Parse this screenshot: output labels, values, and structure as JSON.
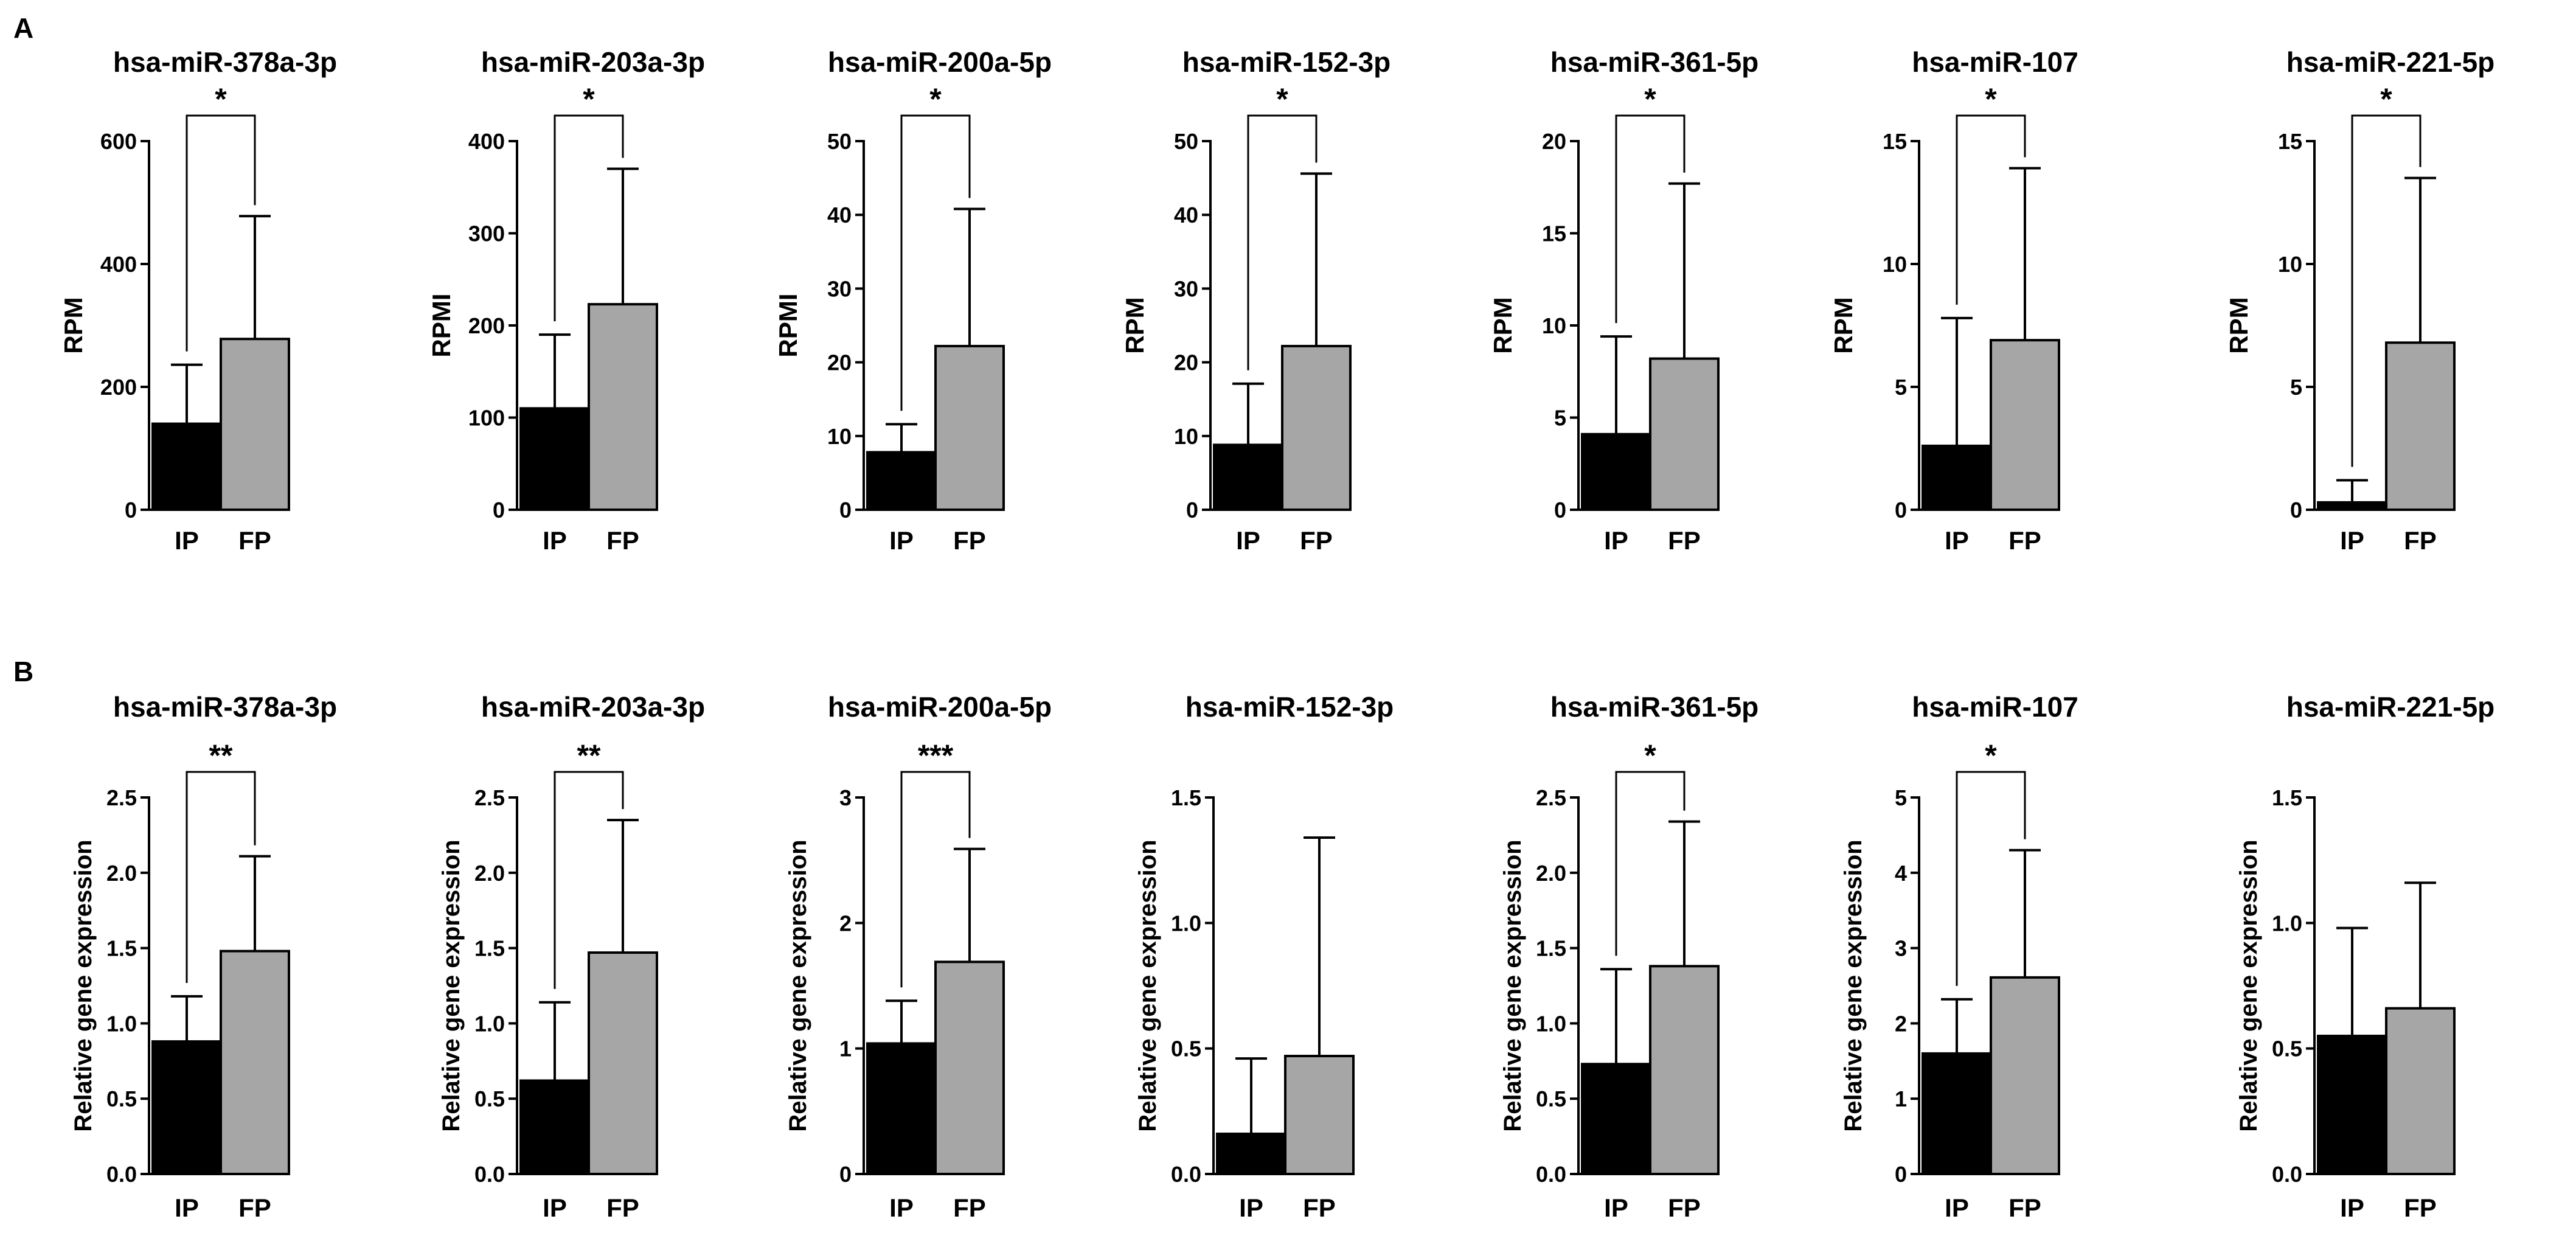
{
  "panels": {
    "A": {
      "label": "A"
    },
    "B": {
      "label": "B"
    }
  },
  "colors": {
    "IP": "#000000",
    "FP": "#a6a6a6",
    "axis": "#000000"
  },
  "chart_data": [
    {
      "panel": "A",
      "type": "bar",
      "title": "hsa-miR-378a-3p",
      "ylabel": "RPM",
      "categories": [
        "IP",
        "FP"
      ],
      "values": [
        140,
        278
      ],
      "errors": [
        236,
        478
      ],
      "ylim": [
        0,
        600
      ],
      "yticks": [
        0,
        200,
        400,
        600
      ],
      "sig": "*"
    },
    {
      "panel": "A",
      "type": "bar",
      "title": "hsa-miR-203a-3p",
      "ylabel": "RPMI",
      "categories": [
        "IP",
        "FP"
      ],
      "values": [
        110,
        223
      ],
      "errors": [
        190,
        370
      ],
      "ylim": [
        0,
        400
      ],
      "yticks": [
        0,
        100,
        200,
        300,
        400
      ],
      "sig": "*"
    },
    {
      "panel": "A",
      "type": "bar",
      "title": "hsa-miR-200a-5p",
      "ylabel": "RPMI",
      "categories": [
        "IP",
        "FP"
      ],
      "values": [
        7.8,
        22.2
      ],
      "errors": [
        11.6,
        40.8
      ],
      "ylim": [
        0,
        50
      ],
      "yticks": [
        0,
        10,
        20,
        30,
        40,
        50
      ],
      "sig": "*"
    },
    {
      "panel": "A",
      "type": "bar",
      "title": "hsa-miR-152-3p",
      "ylabel": "RPM",
      "categories": [
        "IP",
        "FP"
      ],
      "values": [
        8.8,
        22.2
      ],
      "errors": [
        17.1,
        45.6
      ],
      "ylim": [
        0,
        50
      ],
      "yticks": [
        0,
        10,
        20,
        30,
        40,
        50
      ],
      "sig": "*"
    },
    {
      "panel": "A",
      "type": "bar",
      "title": "hsa-miR-361-5p",
      "ylabel": "RPM",
      "categories": [
        "IP",
        "FP"
      ],
      "values": [
        4.1,
        8.2
      ],
      "errors": [
        9.4,
        17.7
      ],
      "ylim": [
        0,
        20
      ],
      "yticks": [
        0,
        5,
        10,
        15,
        20
      ],
      "sig": "*"
    },
    {
      "panel": "A",
      "type": "bar",
      "title": "hsa-miR-107",
      "ylabel": "RPM",
      "categories": [
        "IP",
        "FP"
      ],
      "values": [
        2.6,
        6.9
      ],
      "errors": [
        7.8,
        13.9
      ],
      "ylim": [
        0,
        15
      ],
      "yticks": [
        0,
        5,
        10,
        15
      ],
      "sig": "*"
    },
    {
      "panel": "A",
      "type": "bar",
      "title": "hsa-miR-221-5p",
      "ylabel": "RPM",
      "categories": [
        "IP",
        "FP"
      ],
      "values": [
        0.3,
        6.8
      ],
      "errors": [
        1.2,
        13.5
      ],
      "ylim": [
        0,
        15
      ],
      "yticks": [
        0,
        5,
        10,
        15
      ],
      "sig": "*"
    },
    {
      "panel": "B",
      "type": "bar",
      "title": "hsa-miR-378a-3p",
      "ylabel": "Relative gene expression",
      "categories": [
        "IP",
        "FP"
      ],
      "values": [
        0.88,
        1.48
      ],
      "errors": [
        1.18,
        2.11
      ],
      "ylim": [
        0,
        2.5
      ],
      "yticks": [
        "0.0",
        "0.5",
        "1.0",
        "1.5",
        "2.0",
        "2.5"
      ],
      "sig": "**"
    },
    {
      "panel": "B",
      "type": "bar",
      "title": "hsa-miR-203a-3p",
      "ylabel": "Relative gene expression",
      "categories": [
        "IP",
        "FP"
      ],
      "values": [
        0.62,
        1.47
      ],
      "errors": [
        1.14,
        2.35
      ],
      "ylim": [
        0,
        2.5
      ],
      "yticks": [
        "0.0",
        "0.5",
        "1.0",
        "1.5",
        "2.0",
        "2.5"
      ],
      "sig": "**"
    },
    {
      "panel": "B",
      "type": "bar",
      "title": "hsa-miR-200a-5p",
      "ylabel": "Relative gene expression",
      "categories": [
        "IP",
        "FP"
      ],
      "values": [
        1.04,
        1.69
      ],
      "errors": [
        1.38,
        2.59
      ],
      "ylim": [
        0,
        3
      ],
      "yticks": [
        "0",
        "1",
        "2",
        "3"
      ],
      "sig": "***"
    },
    {
      "panel": "B",
      "type": "bar",
      "title": "hsa-miR-152-3p",
      "ylabel": "Relative gene expression",
      "categories": [
        "IP",
        "FP"
      ],
      "values": [
        0.16,
        0.47
      ],
      "errors": [
        0.46,
        1.34
      ],
      "ylim": [
        0,
        1.5
      ],
      "yticks": [
        "0.0",
        "0.5",
        "1.0",
        "1.5"
      ],
      "sig": ""
    },
    {
      "panel": "B",
      "type": "bar",
      "title": "hsa-miR-361-5p",
      "ylabel": "Relative gene expression",
      "categories": [
        "IP",
        "FP"
      ],
      "values": [
        0.73,
        1.38
      ],
      "errors": [
        1.36,
        2.34
      ],
      "ylim": [
        0,
        2.5
      ],
      "yticks": [
        "0.0",
        "0.5",
        "1.0",
        "1.5",
        "2.0",
        "2.5"
      ],
      "sig": "*"
    },
    {
      "panel": "B",
      "type": "bar",
      "title": "hsa-miR-107",
      "ylabel": "Relative gene expression",
      "categories": [
        "IP",
        "FP"
      ],
      "values": [
        1.6,
        2.61
      ],
      "errors": [
        2.32,
        4.3
      ],
      "ylim": [
        0,
        5
      ],
      "yticks": [
        "0",
        "1",
        "2",
        "3",
        "4",
        "5"
      ],
      "sig": "*"
    },
    {
      "panel": "B",
      "type": "bar",
      "title": "hsa-miR-221-5p",
      "ylabel": "Relative gene expression",
      "categories": [
        "IP",
        "FP"
      ],
      "values": [
        0.55,
        0.66
      ],
      "errors": [
        0.98,
        1.16
      ],
      "ylim": [
        0,
        1.5
      ],
      "yticks": [
        "0.0",
        "0.5",
        "1.0",
        "1.5"
      ],
      "sig": ""
    }
  ]
}
